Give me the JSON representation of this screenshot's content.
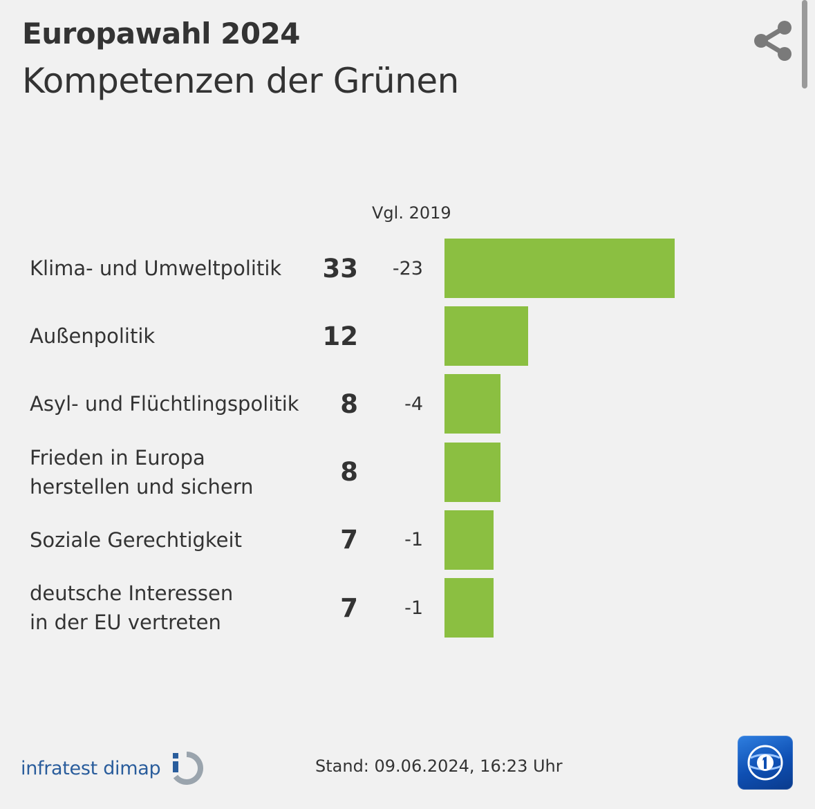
{
  "header": {
    "title": "Europawahl 2024",
    "subtitle": "Kompetenzen der Grünen"
  },
  "chart_data": {
    "type": "bar",
    "orientation": "horizontal",
    "compare_label": "Vgl. 2019",
    "categories": [
      "Klima- und Umweltpolitik",
      "Außenpolitik",
      "Asyl- und Flüchtlingspolitik",
      "Frieden in Europa\nherstellen und sichern",
      "Soziale Gerechtigkeit",
      "deutsche Interessen\nin der EU vertreten"
    ],
    "values": [
      33,
      12,
      8,
      8,
      7,
      7
    ],
    "changes": [
      "-23",
      "",
      "-4",
      "",
      "-1",
      "-1"
    ],
    "bar_color": "#8bbf41",
    "xlim": [
      0,
      33
    ]
  },
  "footer": {
    "source": "infratest dimap",
    "stand": "Stand:  09.06.2024, 16:23 Uhr"
  },
  "icons": {
    "share": "share-icon",
    "source_logo": "infratest-dimap-logo-icon",
    "broadcaster_logo": "ard-logo-icon"
  }
}
